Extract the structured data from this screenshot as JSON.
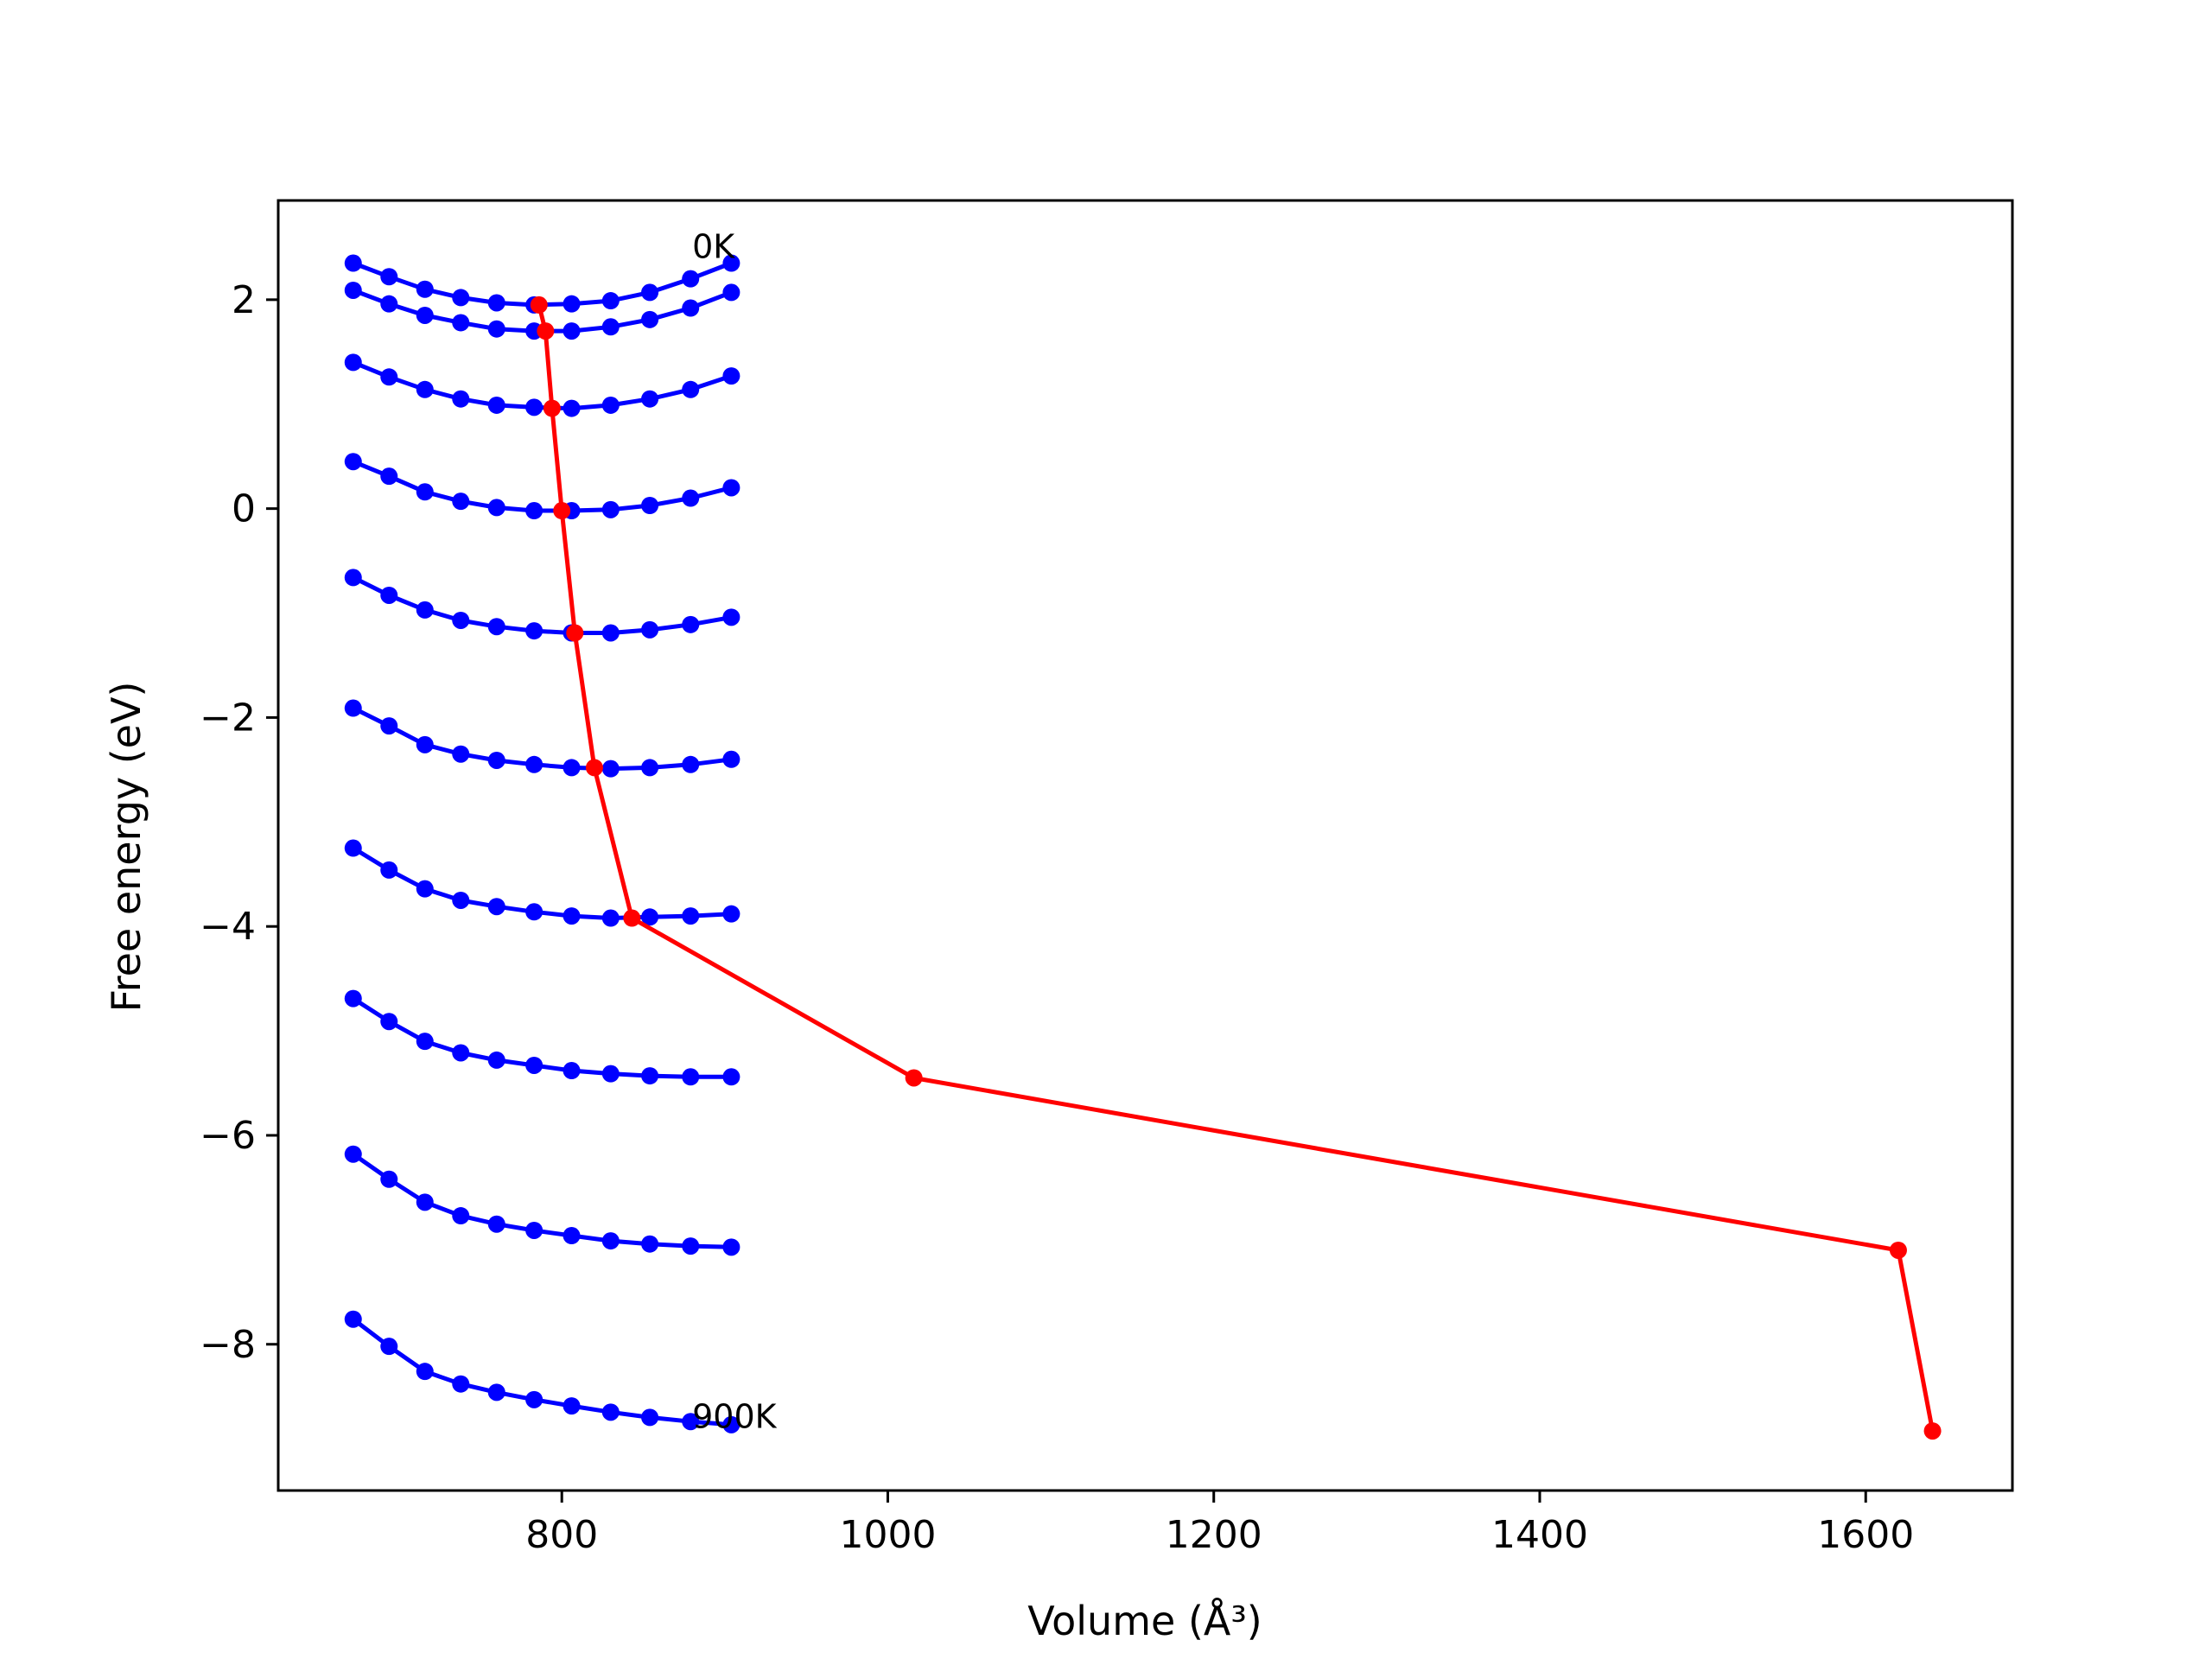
{
  "chart_data": {
    "type": "line",
    "xlabel": "Volume (Å³)",
    "ylabel": "Free energy (eV)",
    "xlim": [
      626,
      1690
    ],
    "ylim": [
      -9.4,
      2.95
    ],
    "xticks": [
      800,
      1000,
      1200,
      1400,
      1600
    ],
    "yticks": [
      2,
      0,
      -2,
      -4,
      -6,
      -8
    ],
    "grid": false,
    "annotations": [
      {
        "text": "0K",
        "x": 880,
        "y": 2.4
      },
      {
        "text": "900K",
        "x": 880,
        "y": -8.8
      }
    ],
    "x": [
      672,
      694,
      716,
      738,
      760,
      783,
      806,
      830,
      854,
      879,
      904
    ],
    "series": [
      {
        "color": "#0000ff",
        "values": [
          2.35,
          2.22,
          2.1,
          2.02,
          1.97,
          1.95,
          1.96,
          1.99,
          2.07,
          2.2,
          2.35
        ]
      },
      {
        "color": "#0000ff",
        "values": [
          2.09,
          1.96,
          1.85,
          1.78,
          1.72,
          1.7,
          1.7,
          1.74,
          1.81,
          1.92,
          2.07
        ]
      },
      {
        "color": "#0000ff",
        "values": [
          1.4,
          1.26,
          1.14,
          1.05,
          0.99,
          0.97,
          0.96,
          0.99,
          1.05,
          1.14,
          1.27
        ]
      },
      {
        "color": "#0000ff",
        "values": [
          0.45,
          0.31,
          0.16,
          0.07,
          0.01,
          -0.02,
          -0.02,
          -0.01,
          0.03,
          0.1,
          0.2
        ]
      },
      {
        "color": "#0000ff",
        "values": [
          -0.66,
          -0.83,
          -0.97,
          -1.07,
          -1.13,
          -1.17,
          -1.19,
          -1.19,
          -1.16,
          -1.11,
          -1.04
        ]
      },
      {
        "color": "#0000ff",
        "values": [
          -1.91,
          -2.08,
          -2.26,
          -2.35,
          -2.41,
          -2.45,
          -2.48,
          -2.49,
          -2.48,
          -2.45,
          -2.4
        ]
      },
      {
        "color": "#0000ff",
        "values": [
          -3.25,
          -3.46,
          -3.64,
          -3.75,
          -3.81,
          -3.86,
          -3.9,
          -3.92,
          -3.91,
          -3.9,
          -3.88
        ]
      },
      {
        "color": "#0000ff",
        "values": [
          -4.69,
          -4.91,
          -5.1,
          -5.21,
          -5.28,
          -5.33,
          -5.38,
          -5.41,
          -5.43,
          -5.44,
          -5.44
        ]
      },
      {
        "color": "#0000ff",
        "values": [
          -6.18,
          -6.42,
          -6.64,
          -6.77,
          -6.85,
          -6.91,
          -6.96,
          -7.01,
          -7.04,
          -7.06,
          -7.07
        ]
      },
      {
        "color": "#0000ff",
        "values": [
          -7.76,
          -8.02,
          -8.26,
          -8.38,
          -8.46,
          -8.53,
          -8.59,
          -8.65,
          -8.7,
          -8.74,
          -8.77
        ]
      }
    ],
    "min_curve": {
      "color": "#ff0000",
      "x": [
        786,
        790,
        794,
        800,
        808,
        820,
        843,
        1016,
        1620,
        1641
      ],
      "y": [
        1.95,
        1.7,
        0.96,
        -0.02,
        -1.19,
        -2.48,
        -3.92,
        -5.45,
        -7.1,
        -8.83
      ]
    }
  }
}
